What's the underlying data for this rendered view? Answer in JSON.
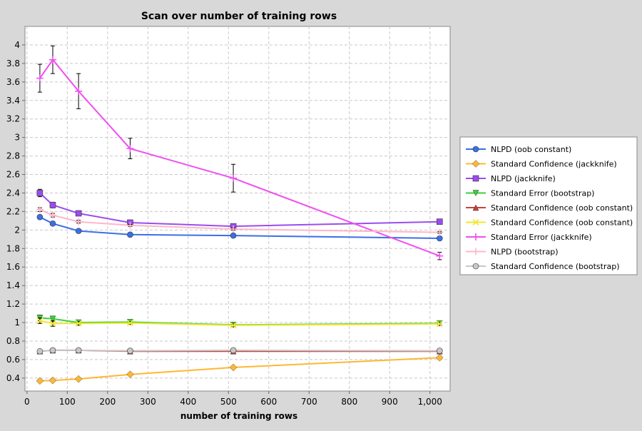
{
  "chart_data": {
    "type": "line",
    "title": "Scan over number of training rows",
    "xlabel": "number of training rows",
    "ylabel": "",
    "xlim": [
      -5,
      1050
    ],
    "ylim": [
      0.26,
      4.2
    ],
    "x_ticks": [
      {
        "value": 0,
        "label": "0"
      },
      {
        "value": 100,
        "label": "100"
      },
      {
        "value": 200,
        "label": "200"
      },
      {
        "value": 300,
        "label": "300"
      },
      {
        "value": 400,
        "label": "400"
      },
      {
        "value": 500,
        "label": "500"
      },
      {
        "value": 600,
        "label": "600"
      },
      {
        "value": 700,
        "label": "700"
      },
      {
        "value": 800,
        "label": "800"
      },
      {
        "value": 900,
        "label": "900"
      },
      {
        "value": 1000,
        "label": "1,000"
      }
    ],
    "y_ticks": [
      {
        "value": 0.4,
        "label": "0.4"
      },
      {
        "value": 0.6,
        "label": "0.6"
      },
      {
        "value": 0.8,
        "label": "0.8"
      },
      {
        "value": 1.0,
        "label": "1"
      },
      {
        "value": 1.2,
        "label": "1.2"
      },
      {
        "value": 1.4,
        "label": "1.4"
      },
      {
        "value": 1.6,
        "label": "1.6"
      },
      {
        "value": 1.8,
        "label": "1.8"
      },
      {
        "value": 2.0,
        "label": "2"
      },
      {
        "value": 2.2,
        "label": "2.2"
      },
      {
        "value": 2.4,
        "label": "2.4"
      },
      {
        "value": 2.6,
        "label": "2.6"
      },
      {
        "value": 2.8,
        "label": "2.8"
      },
      {
        "value": 3.0,
        "label": "3"
      },
      {
        "value": 3.2,
        "label": "3.2"
      },
      {
        "value": 3.4,
        "label": "3.4"
      },
      {
        "value": 3.6,
        "label": "3.6"
      },
      {
        "value": 3.8,
        "label": "3.8"
      },
      {
        "value": 4.0,
        "label": "4"
      }
    ],
    "grid": true,
    "legend_position": "right",
    "x": [
      32,
      64,
      128,
      256,
      512,
      1024
    ],
    "series": [
      {
        "name": "NLPD (oob constant)",
        "color": "#3b6fe6",
        "marker": "circle",
        "values": [
          2.14,
          2.07,
          1.99,
          1.95,
          1.94,
          1.91
        ],
        "errors": [
          0.02,
          0.02,
          0.015,
          0.01,
          0.01,
          0.01
        ]
      },
      {
        "name": "Standard Confidence (jackknife)",
        "color": "#ffb732",
        "marker": "diamond",
        "values": [
          0.37,
          0.375,
          0.39,
          0.44,
          0.515,
          0.62
        ],
        "errors": [
          0.01,
          0.01,
          0.01,
          0.01,
          0.01,
          0.01
        ]
      },
      {
        "name": "NLPD (jackknife)",
        "color": "#9b4cf0",
        "marker": "square",
        "values": [
          2.4,
          2.27,
          2.18,
          2.08,
          2.04,
          2.09
        ],
        "errors": [
          0.04,
          0.03,
          0.02,
          0.02,
          0.015,
          0.015
        ]
      },
      {
        "name": "Standard Error (bootstrap)",
        "color": "#3ad23a",
        "marker": "triangle-down",
        "values": [
          1.05,
          1.04,
          1.0,
          1.005,
          0.975,
          0.99
        ],
        "errors": [
          0.03,
          0.03,
          0.02,
          0.02,
          0.015,
          0.015
        ]
      },
      {
        "name": "Standard Confidence (oob constant)",
        "color": "#c84040",
        "marker": "triangle-up",
        "values": [
          0.69,
          0.7,
          0.7,
          0.69,
          0.69,
          0.69
        ],
        "errors": [
          0.01,
          0.01,
          0.01,
          0.01,
          0.01,
          0.01
        ]
      },
      {
        "name": "Standard Confidence (oob constant)",
        "color": "#f2e633",
        "marker": "x",
        "values": [
          1.02,
          0.99,
          0.99,
          0.995,
          0.97,
          0.985
        ],
        "errors": [
          0.03,
          0.03,
          0.02,
          0.015,
          0.015,
          0.015
        ]
      },
      {
        "name": "Standard Error (jackknife)",
        "color": "#f04ff0",
        "marker": "plus",
        "values": [
          3.64,
          3.84,
          3.5,
          2.88,
          2.56,
          1.72
        ],
        "errors": [
          0.15,
          0.15,
          0.19,
          0.11,
          0.15,
          0.04
        ]
      },
      {
        "name": "NLPD (bootstrap)",
        "color": "#ffb6c8",
        "marker": "plus",
        "values": [
          2.22,
          2.16,
          2.09,
          2.05,
          2.01,
          1.975
        ],
        "errors": [
          0.02,
          0.02,
          0.015,
          0.01,
          0.01,
          0.01
        ]
      },
      {
        "name": "Standard Confidence (bootstrap)",
        "color": "#c8c8c8",
        "marker": "circle",
        "values": [
          0.69,
          0.7,
          0.7,
          0.695,
          0.7,
          0.695
        ],
        "errors": [
          0.01,
          0.01,
          0.01,
          0.01,
          0.01,
          0.01
        ]
      }
    ]
  }
}
